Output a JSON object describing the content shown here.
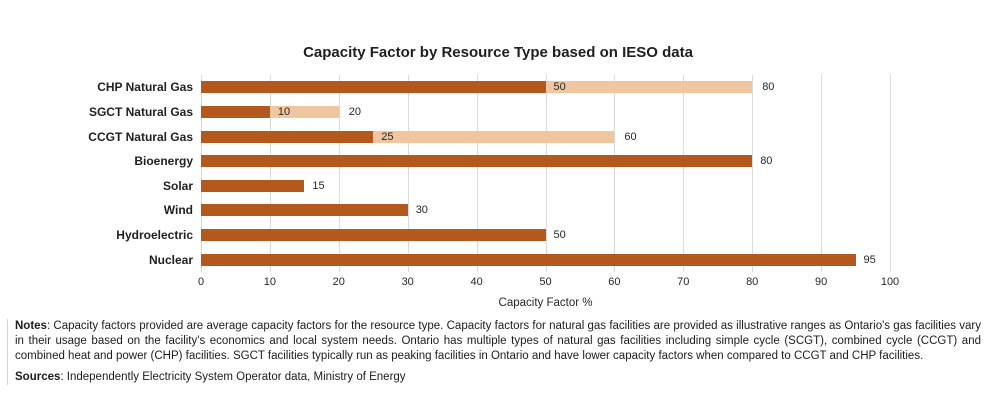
{
  "chart_data": {
    "type": "bar",
    "orientation": "horizontal",
    "title": "Capacity Factor by Resource Type based on IESO data",
    "xlabel": "Capacity Factor %",
    "xlim": [
      0,
      100
    ],
    "xticks": [
      0,
      10,
      20,
      30,
      40,
      50,
      60,
      70,
      80,
      90,
      100
    ],
    "grid": "vertical",
    "legend": "none",
    "categories": [
      "CHP Natural Gas",
      "SGCT Natural Gas",
      "CCGT Natural Gas",
      "Bioenergy",
      "Solar",
      "Wind",
      "Hydroelectric",
      "Nuclear"
    ],
    "bars": [
      {
        "category": "CHP Natural Gas",
        "low": 50,
        "high": 80
      },
      {
        "category": "SGCT Natural Gas",
        "low": 10,
        "high": 20
      },
      {
        "category": "CCGT Natural Gas",
        "low": 25,
        "high": 60
      },
      {
        "category": "Bioenergy",
        "value": 80
      },
      {
        "category": "Solar",
        "value": 15
      },
      {
        "category": "Wind",
        "value": 30
      },
      {
        "category": "Hydroelectric",
        "value": 50
      },
      {
        "category": "Nuclear",
        "value": 95
      }
    ],
    "colors": {
      "bar_solid": "#b3591d",
      "bar_range": "#f0c6a0",
      "gridline": "#d9d9d9",
      "text": "#262626"
    }
  },
  "notes": {
    "label": "Notes",
    "body": ": Capacity factors provided are average capacity factors for the resource type. Capacity factors for natural gas facilities are provided as illustrative ranges as Ontario's gas facilities vary in their usage based on the facility's economics and local system needs. Ontario has multiple types of natural gas facilities including simple cycle (SCGT), combined cycle (CCGT) and combined heat and power (CHP) facilities. SGCT facilities typically run as peaking facilities in Ontario and have lower capacity factors when compared to CCGT and CHP facilities."
  },
  "sources": {
    "label": "Sources",
    "body": ": Independently Electricity System Operator data, Ministry of Energy"
  }
}
